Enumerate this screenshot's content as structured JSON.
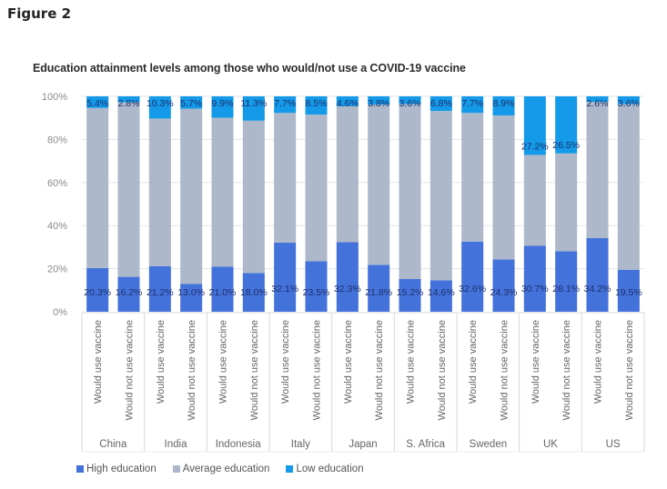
{
  "figure_label": "Figure 2",
  "chart_data": {
    "type": "bar",
    "stacked": true,
    "title": "Education attainment levels among those who would/not use a COVID-19 vaccine",
    "xlabel": "",
    "ylabel": "",
    "ylim": [
      0,
      100
    ],
    "yticks": [
      "0%",
      "20%",
      "40%",
      "60%",
      "80%",
      "100%"
    ],
    "ytick_values": [
      0,
      20,
      40,
      60,
      80,
      100
    ],
    "grid": true,
    "legend_position": "bottom-left",
    "groups": [
      "China",
      "India",
      "Indonesia",
      "Italy",
      "Japan",
      "S. Africa",
      "Sweden",
      "UK",
      "US"
    ],
    "subcategories": [
      "Would use vaccine",
      "Would not use vaccine"
    ],
    "categories": [
      "China - Would use vaccine",
      "China - Would not use vaccine",
      "India - Would use vaccine",
      "India - Would not use vaccine",
      "Indonesia - Would use vaccine",
      "Indonesia - Would not use vaccine",
      "Italy - Would use vaccine",
      "Italy - Would not use vaccine",
      "Japan - Would use vaccine",
      "Japan - Would not use vaccine",
      "S. Africa - Would use vaccine",
      "S. Africa - Would not use vaccine",
      "Sweden - Would use vaccine",
      "Sweden - Would not use vaccine",
      "UK - Would use vaccine",
      "UK - Would not use vaccine",
      "US - Would use vaccine",
      "US - Would not use vaccine"
    ],
    "series": [
      {
        "name": "High education",
        "color": "#4472db",
        "values": [
          20.3,
          16.2,
          21.2,
          13.0,
          21.0,
          18.0,
          32.1,
          23.5,
          32.3,
          21.8,
          15.2,
          14.6,
          32.6,
          24.3,
          30.7,
          28.1,
          34.2,
          19.5
        ],
        "labels": [
          "20.3%",
          "16.2%",
          "21.2%",
          "13.0%",
          "21.0%",
          "18.0%",
          "32.1%",
          "23.5%",
          "32.3%",
          "21.8%",
          "15.2%",
          "14.6%",
          "32.6%",
          "24.3%",
          "30.7%",
          "28.1%",
          "34.2%",
          "19.5%"
        ]
      },
      {
        "name": "Average education",
        "color": "#adb9ca",
        "values": [
          74.3,
          81.0,
          68.5,
          81.3,
          69.1,
          70.7,
          60.2,
          68.0,
          63.1,
          74.4,
          81.2,
          78.6,
          59.7,
          66.8,
          42.1,
          45.4,
          63.2,
          76.9
        ],
        "labels": []
      },
      {
        "name": "Low education",
        "color": "#149ae8",
        "values": [
          5.4,
          2.8,
          10.3,
          5.7,
          9.9,
          11.3,
          7.7,
          8.5,
          4.6,
          3.8,
          3.6,
          6.8,
          7.7,
          8.9,
          27.2,
          26.5,
          2.6,
          3.6
        ],
        "labels": [
          "5.4%",
          "2.8%",
          "10.3%",
          "5.7%",
          "9.9%",
          "11.3%",
          "7.7%",
          "8.5%",
          "4.6%",
          "3.8%",
          "3.6%",
          "6.8%",
          "7.7%",
          "8.9%",
          "27.2%",
          "26.5%",
          "2.6%",
          "3.6%"
        ]
      }
    ]
  }
}
